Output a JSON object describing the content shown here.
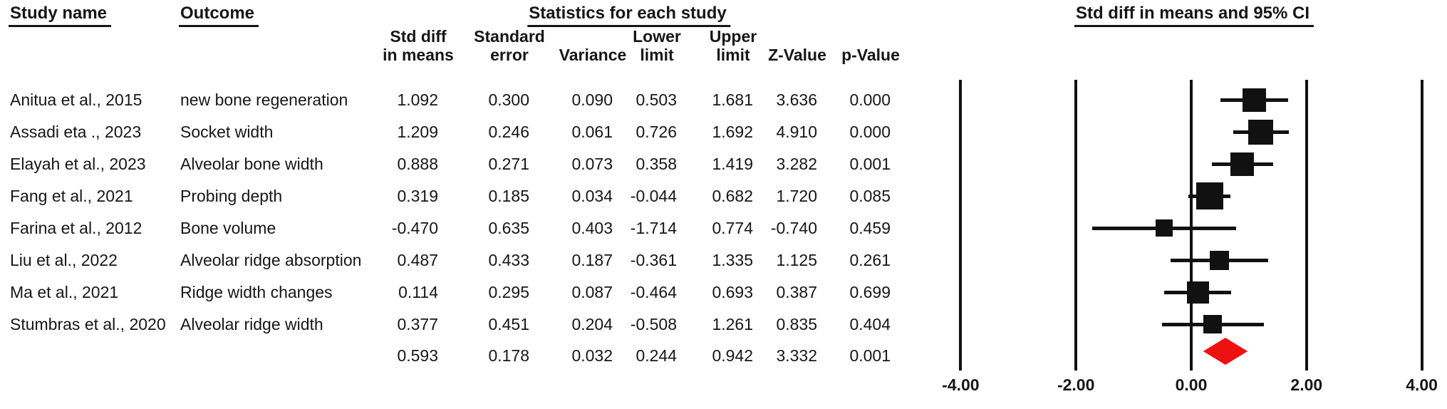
{
  "headers": {
    "study_name": "Study name",
    "outcome": "Outcome",
    "statistics": "Statistics for each study",
    "ci_title": "Std diff in means and 95% CI",
    "columns": [
      {
        "line1": "Std diff",
        "line2": "in means"
      },
      {
        "line1": "Standard",
        "line2": "error"
      },
      {
        "line1": "",
        "line2": "Variance"
      },
      {
        "line1": "Lower",
        "line2": "limit"
      },
      {
        "line1": "Upper",
        "line2": "limit"
      },
      {
        "line1": "",
        "line2": "Z-Value"
      },
      {
        "line1": "",
        "line2": "p-Value"
      }
    ]
  },
  "colors": {
    "ink": "#161616",
    "marker": "#111111",
    "summary_diamond": "#ee1111"
  },
  "chart_data": {
    "type": "forest",
    "title": "Std diff in means and 95% CI",
    "effect_measure": "Std diff in means",
    "x_axis": {
      "min": -4,
      "max": 4,
      "tick_values": [
        -4,
        -2,
        0,
        2,
        4
      ],
      "tick_labels": [
        "-4.00",
        "-2.00",
        "0.00",
        "2.00",
        "4.00"
      ],
      "grid": true
    },
    "rows": [
      {
        "study": "Anitua et al., 2015",
        "outcome": "new bone regeneration",
        "std_diff": "1.092",
        "std_err": "0.300",
        "variance": "0.090",
        "lower": "0.503",
        "upper": "1.681",
        "z": "3.636",
        "p": "0.000",
        "marker_size": 33,
        "summary": false
      },
      {
        "study": "Assadi eta ., 2023",
        "outcome": "Socket width",
        "std_diff": "1.209",
        "std_err": "0.246",
        "variance": "0.061",
        "lower": "0.726",
        "upper": "1.692",
        "z": "4.910",
        "p": "0.000",
        "marker_size": 35,
        "summary": false
      },
      {
        "study": "Elayah et al., 2023",
        "outcome": "Alveolar bone width",
        "std_diff": "0.888",
        "std_err": "0.271",
        "variance": "0.073",
        "lower": "0.358",
        "upper": "1.419",
        "z": "3.282",
        "p": "0.001",
        "marker_size": 33,
        "summary": false
      },
      {
        "study": "Fang et al., 2021",
        "outcome": "Probing depth",
        "std_diff": "0.319",
        "std_err": "0.185",
        "variance": "0.034",
        "lower": "-0.044",
        "upper": "0.682",
        "z": "1.720",
        "p": "0.085",
        "marker_size": 38,
        "summary": false
      },
      {
        "study": "Farina et al., 2012",
        "outcome": "Bone volume",
        "std_diff": "-0.470",
        "std_err": "0.635",
        "variance": "0.403",
        "lower": "-1.714",
        "upper": "0.774",
        "z": "-0.740",
        "p": "0.459",
        "marker_size": 24,
        "summary": false
      },
      {
        "study": "Liu et al., 2022",
        "outcome": "Alveolar ridge absorption",
        "std_diff": "0.487",
        "std_err": "0.433",
        "variance": "0.187",
        "lower": "-0.361",
        "upper": "1.335",
        "z": "1.125",
        "p": "0.261",
        "marker_size": 27,
        "summary": false
      },
      {
        "study": "Ma et al., 2021",
        "outcome": "Ridge width changes",
        "std_diff": "0.114",
        "std_err": "0.295",
        "variance": "0.087",
        "lower": "-0.464",
        "upper": "0.693",
        "z": "0.387",
        "p": "0.699",
        "marker_size": 31,
        "summary": false
      },
      {
        "study": "Stumbras et al., 2020",
        "outcome": "Alveolar ridge width",
        "std_diff": "0.377",
        "std_err": "0.451",
        "variance": "0.204",
        "lower": "-0.508",
        "upper": "1.261",
        "z": "0.835",
        "p": "0.404",
        "marker_size": 26,
        "summary": false
      },
      {
        "study": "",
        "outcome": "",
        "std_diff": "0.593",
        "std_err": "0.178",
        "variance": "0.032",
        "lower": "0.244",
        "upper": "0.942",
        "z": "3.332",
        "p": "0.001",
        "marker_size": 0,
        "summary": true
      }
    ]
  }
}
